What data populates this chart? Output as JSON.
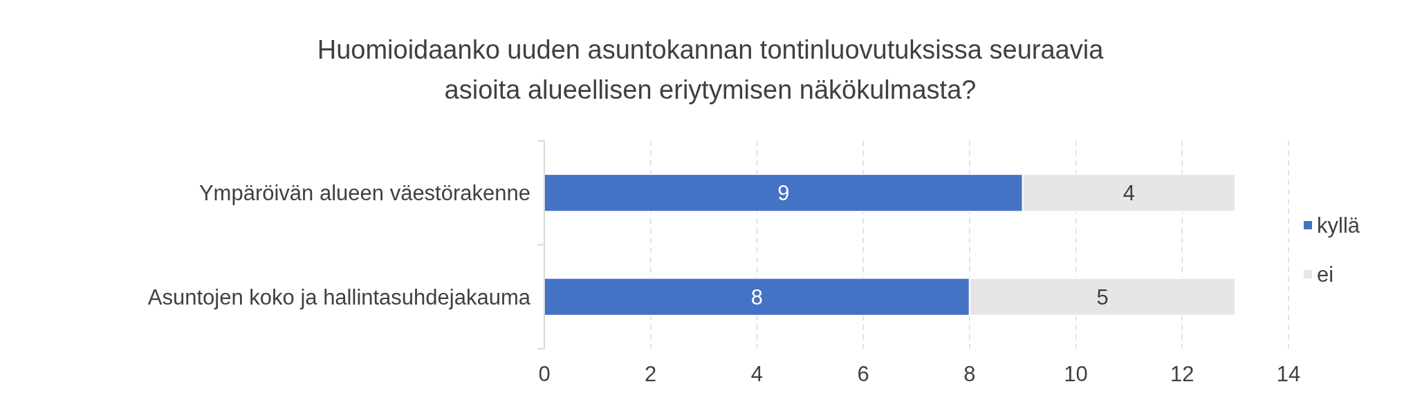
{
  "chart_data": {
    "type": "bar",
    "orientation": "horizontal",
    "stacked": true,
    "title": "Huomioidaanko uuden asuntokannan tontinluovutuksissa seuraavia asioita alueellisen eriytymisen näkökulmasta?",
    "categories": [
      "Ympäröivän alueen väestörakenne",
      "Asuntojen koko ja hallintasuhdejakauma"
    ],
    "series": [
      {
        "name": "kyllä",
        "color": "#4472c4",
        "values": [
          9,
          8
        ]
      },
      {
        "name": "ei",
        "color": "#e7e6e6",
        "values": [
          4,
          5
        ]
      }
    ],
    "xlim": [
      0,
      14
    ],
    "xticks": [
      0,
      2,
      4,
      6,
      8,
      10,
      12,
      14
    ],
    "grid": "x",
    "legend": "right",
    "data_labels": true
  }
}
